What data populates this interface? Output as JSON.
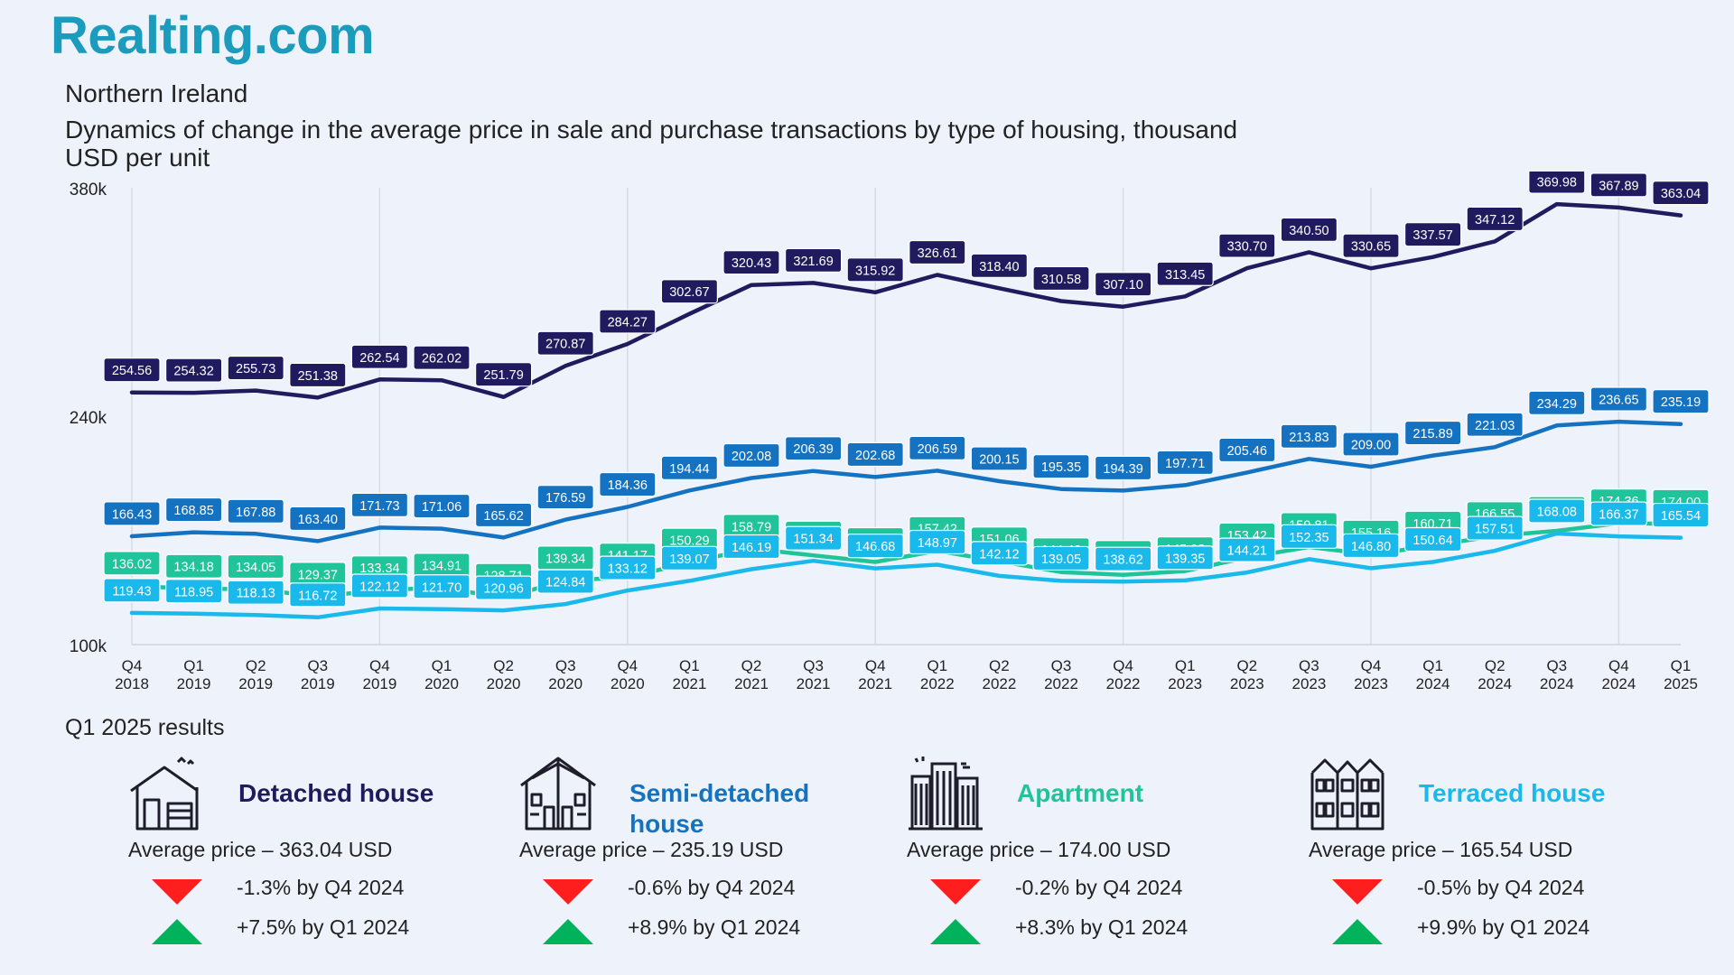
{
  "brand": {
    "logo_text": "Realting.com",
    "color": "#1c9cbc"
  },
  "header": {
    "region": "Northern Ireland",
    "subtitle": "Dynamics of change in the average price in sale and purchase transactions by type of housing, thousand USD per unit"
  },
  "chart_data": {
    "type": "line",
    "title": "Dynamics of change in the average price in sale and purchase transactions by type of housing, thousand USD per unit",
    "xlabel": "",
    "ylabel": "",
    "ylim": [
      100,
      380
    ],
    "yticks": [
      {
        "value": 380,
        "label": "380k"
      },
      {
        "value": 240,
        "label": "240k"
      },
      {
        "value": 100,
        "label": "100k"
      }
    ],
    "grid": "vertical at Q4 of each year",
    "categories": [
      [
        "Q4",
        "2018"
      ],
      [
        "Q1",
        "2019"
      ],
      [
        "Q2",
        "2019"
      ],
      [
        "Q3",
        "2019"
      ],
      [
        "Q4",
        "2019"
      ],
      [
        "Q1",
        "2020"
      ],
      [
        "Q2",
        "2020"
      ],
      [
        "Q3",
        "2020"
      ],
      [
        "Q4",
        "2020"
      ],
      [
        "Q1",
        "2021"
      ],
      [
        "Q2",
        "2021"
      ],
      [
        "Q3",
        "2021"
      ],
      [
        "Q4",
        "2021"
      ],
      [
        "Q1",
        "2022"
      ],
      [
        "Q2",
        "2022"
      ],
      [
        "Q3",
        "2022"
      ],
      [
        "Q4",
        "2022"
      ],
      [
        "Q1",
        "2023"
      ],
      [
        "Q2",
        "2023"
      ],
      [
        "Q3",
        "2023"
      ],
      [
        "Q4",
        "2023"
      ],
      [
        "Q1",
        "2024"
      ],
      [
        "Q2",
        "2024"
      ],
      [
        "Q3",
        "2024"
      ],
      [
        "Q4",
        "2024"
      ],
      [
        "Q1",
        "2025"
      ]
    ],
    "series": [
      {
        "name": "Detached house",
        "color": "#1f1b5e",
        "values": [
          254.56,
          254.32,
          255.73,
          251.38,
          262.54,
          262.02,
          251.79,
          270.87,
          284.27,
          302.67,
          320.43,
          321.69,
          315.92,
          326.61,
          318.4,
          310.58,
          307.1,
          313.45,
          330.7,
          340.5,
          330.65,
          337.57,
          347.12,
          369.98,
          367.89,
          363.04
        ],
        "labels": [
          "254.56",
          "254.32",
          "255.73",
          "251.38",
          "262.54",
          "262.02",
          "251.79",
          "270.87",
          "284.27",
          "302.67",
          "320.43",
          "321.69",
          "315.92",
          "326.61",
          "318.40",
          "310.58",
          "307.10",
          "313.45",
          "330.70",
          "340.50",
          "330.65",
          "337.57",
          "347.12",
          "369.98",
          "367.89",
          "363.04"
        ]
      },
      {
        "name": "Semi-detached house",
        "color": "#1472c0",
        "values": [
          166.43,
          168.85,
          167.88,
          163.4,
          171.73,
          171.06,
          165.62,
          176.59,
          184.36,
          194.44,
          202.08,
          206.39,
          202.68,
          206.59,
          200.15,
          195.35,
          194.39,
          197.71,
          205.46,
          213.83,
          209.0,
          215.89,
          221.03,
          234.29,
          236.65,
          235.19
        ],
        "labels": [
          "166.43",
          "168.85",
          "167.88",
          "163.40",
          "171.73",
          "171.06",
          "165.62",
          "176.59",
          "184.36",
          "194.44",
          "202.08",
          "206.39",
          "202.68",
          "206.59",
          "200.15",
          "195.35",
          "194.39",
          "197.71",
          "205.46",
          "213.83",
          "209.00",
          "215.89",
          "221.03",
          "234.29",
          "236.65",
          "235.19"
        ]
      },
      {
        "name": "Apartment",
        "color": "#1fc49a",
        "values": [
          136.02,
          134.18,
          134.05,
          129.37,
          133.34,
          134.91,
          128.71,
          139.34,
          141.17,
          150.29,
          158.79,
          154.65,
          150.62,
          157.42,
          151.06,
          144.42,
          142.74,
          145.03,
          153.42,
          159.81,
          155.16,
          160.71,
          166.55,
          169.74,
          174.36,
          174.0
        ],
        "labels": [
          "136.02",
          "134.18",
          "134.05",
          "129.37",
          "133.34",
          "134.91",
          "128.71",
          "139.34",
          "141.17",
          "150.29",
          "158.79",
          "154.65",
          "150.62",
          "157.42",
          "151.06",
          "144.42",
          "142.74",
          "145.03",
          "153.42",
          "159.81",
          "155.16",
          "160.71",
          "166.55",
          "169.74",
          "174.36",
          "174.00"
        ]
      },
      {
        "name": "Terraced house",
        "color": "#1ab9ec",
        "values": [
          119.43,
          118.95,
          118.13,
          116.72,
          122.12,
          121.7,
          120.96,
          124.84,
          133.12,
          139.07,
          146.19,
          151.34,
          146.68,
          148.97,
          142.12,
          139.05,
          138.62,
          139.35,
          144.21,
          152.35,
          146.8,
          150.64,
          157.51,
          168.08,
          166.37,
          165.54
        ],
        "labels": [
          "119.43",
          "118.95",
          "118.13",
          "116.72",
          "122.12",
          "121.70",
          "120.96",
          "124.84",
          "133.12",
          "139.07",
          "146.19",
          "151.34",
          "146.68",
          "148.97",
          "142.12",
          "139.05",
          "138.62",
          "139.35",
          "144.21",
          "152.35",
          "146.80",
          "150.64",
          "157.51",
          "168.08",
          "166.37",
          "165.54"
        ]
      }
    ]
  },
  "results": {
    "title": "Q1 2025 results",
    "cards": [
      {
        "name": "Detached house",
        "color": "#1f1b5e",
        "icon": "detached-house-icon",
        "avg": "Average price – 363.04 USD",
        "change_q": "-1.3% by Q4 2024",
        "change_y": "+7.5% by Q1 2024"
      },
      {
        "name": "Semi-detached house",
        "color": "#1472c0",
        "icon": "semi-detached-house-icon",
        "avg": "Average price – 235.19 USD",
        "change_q": "-0.6% by Q4 2024",
        "change_y": "+8.9% by Q1 2024"
      },
      {
        "name": "Apartment",
        "color": "#1fc49a",
        "icon": "apartment-building-icon",
        "avg": "Average price – 174.00 USD",
        "change_q": "-0.2% by Q4 2024",
        "change_y": "+8.3% by Q1 2024"
      },
      {
        "name": "Terraced house",
        "color": "#1ab9ec",
        "icon": "terraced-house-icon",
        "avg": "Average price – 165.54 USD",
        "change_q": "-0.5% by Q4 2024",
        "change_y": "+9.9% by Q1 2024"
      }
    ],
    "down_color": "#ff1e1e",
    "up_color": "#00b25c"
  }
}
